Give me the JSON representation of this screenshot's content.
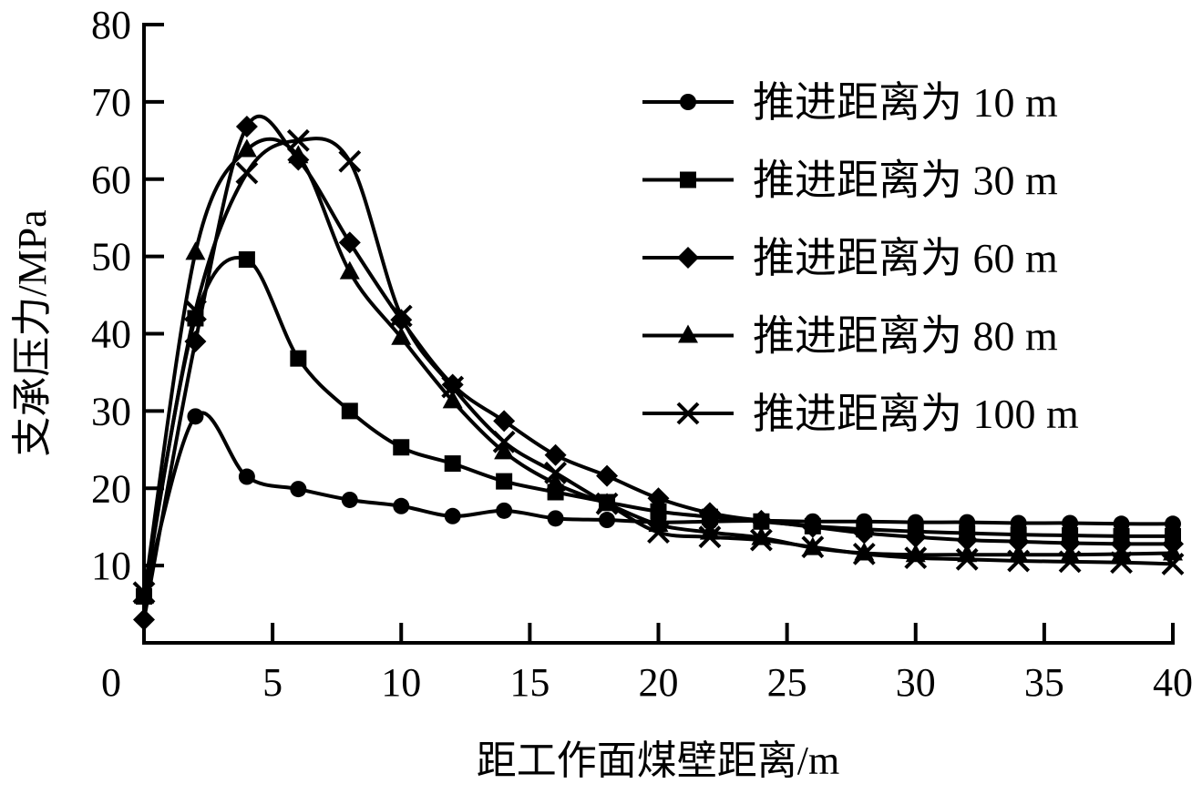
{
  "chart_data": {
    "type": "line",
    "title": "",
    "xlabel": "距工作面煤壁距离/m",
    "ylabel": "支承压力/MPa",
    "xlim": [
      0,
      40
    ],
    "ylim": [
      0,
      80
    ],
    "xticks": [
      0,
      5,
      10,
      15,
      20,
      25,
      30,
      35,
      40
    ],
    "yticks": [
      10,
      20,
      30,
      40,
      50,
      60,
      70,
      80
    ],
    "grid": false,
    "legend_position": "top-right",
    "x": [
      0,
      2,
      4,
      6,
      8,
      10,
      12,
      14,
      16,
      18,
      20,
      22,
      24,
      26,
      28,
      30,
      32,
      34,
      36,
      38,
      40
    ],
    "series": [
      {
        "name": "推进距离为 10 m",
        "marker": "circle",
        "values": [
          6.0,
          29.3,
          21.5,
          19.9,
          18.5,
          17.7,
          16.4,
          17.1,
          16.1,
          15.9,
          15.6,
          15.7,
          15.8,
          15.7,
          15.7,
          15.6,
          15.6,
          15.5,
          15.5,
          15.4,
          15.4
        ]
      },
      {
        "name": "推进距离为 30 m",
        "marker": "square",
        "values": [
          6.0,
          42.0,
          49.6,
          36.8,
          30.0,
          25.3,
          23.2,
          20.9,
          19.5,
          18.2,
          17.0,
          16.3,
          15.7,
          15.1,
          14.7,
          14.4,
          14.2,
          14.0,
          13.9,
          13.8,
          13.8
        ]
      },
      {
        "name": "推进距离为 60 m",
        "marker": "diamond",
        "values": [
          3.0,
          39.0,
          66.8,
          62.5,
          51.8,
          41.8,
          33.4,
          28.7,
          24.3,
          21.6,
          18.7,
          16.8,
          15.8,
          15.0,
          14.2,
          13.7,
          13.3,
          13.1,
          12.9,
          12.8,
          12.8
        ]
      },
      {
        "name": "推进距离为 80 m",
        "marker": "triangle",
        "values": [
          6.0,
          50.5,
          63.8,
          63.0,
          48.0,
          39.5,
          31.3,
          24.7,
          20.6,
          18.0,
          15.3,
          14.3,
          13.6,
          12.3,
          11.6,
          11.4,
          11.4,
          11.4,
          11.4,
          11.5,
          11.6
        ]
      },
      {
        "name": "推进距离为 100 m",
        "marker": "cross",
        "values": [
          6.5,
          43.0,
          60.8,
          65.0,
          62.3,
          42.3,
          33.1,
          26.0,
          22.0,
          18.0,
          14.3,
          13.7,
          13.3,
          12.4,
          11.5,
          11.0,
          10.8,
          10.6,
          10.5,
          10.4,
          10.2
        ]
      }
    ]
  }
}
